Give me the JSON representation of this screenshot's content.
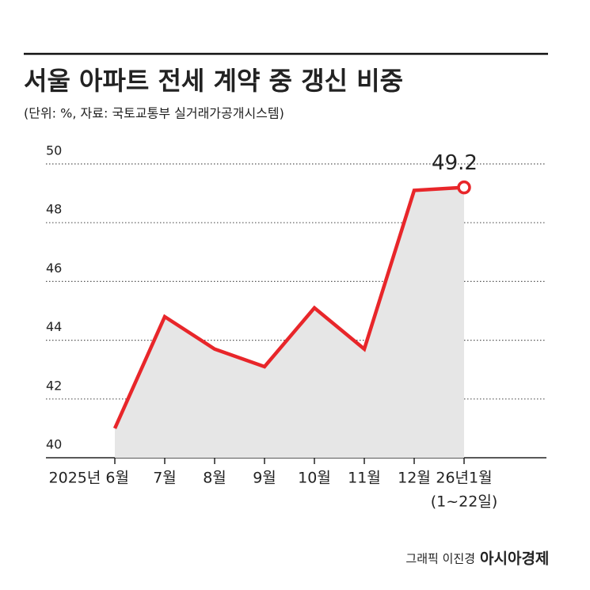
{
  "chart_data": {
    "type": "line",
    "title": "서울 아파트 전세 계약 중 갱신 비중",
    "subtitle": "(단위: %, 자료: 국토교통부 실거래가공개시스템)",
    "categories": [
      "2025년 6월",
      "7월",
      "8월",
      "9월",
      "10월",
      "11월",
      "12월",
      "26년1월"
    ],
    "category_note": "(1~22일)",
    "values": [
      41.0,
      44.8,
      43.7,
      43.1,
      45.1,
      43.7,
      49.1,
      49.2
    ],
    "color": "#e8262a",
    "area_color": "#e6e6e6",
    "ylim": [
      40,
      50
    ],
    "yticks": [
      40,
      42,
      44,
      46,
      48,
      50
    ],
    "grid": true,
    "credit": "그래픽 이진경",
    "source_logo": "아시아경제"
  }
}
